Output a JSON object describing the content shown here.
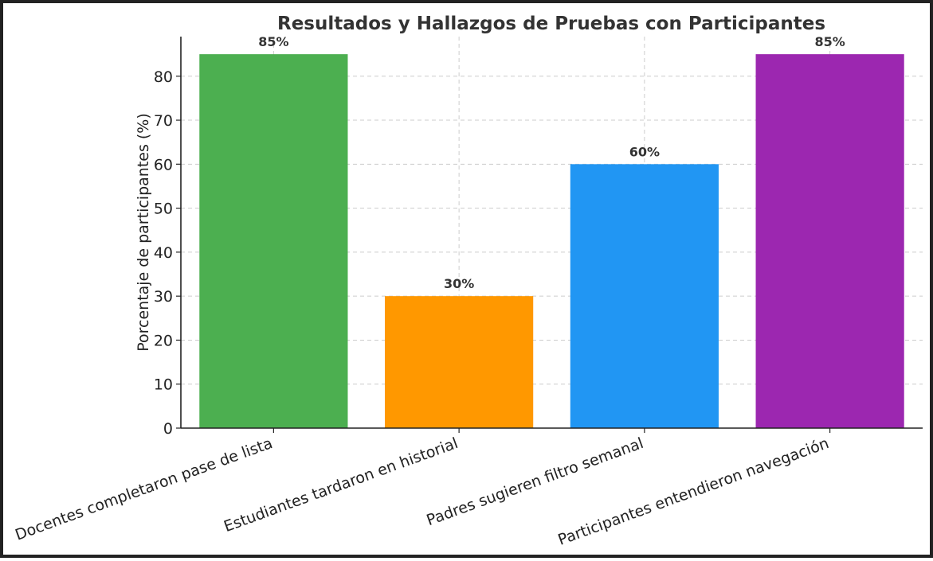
{
  "chart_data": {
    "type": "bar",
    "title": "Resultados y Hallazgos de Pruebas con Participantes",
    "xlabel": "",
    "ylabel": "Porcentaje de participantes (%)",
    "categories": [
      "Docentes completaron pase de lista",
      "Estudiantes tardaron en historial",
      "Padres sugieren filtro semanal",
      "Participantes entendieron navegación"
    ],
    "values": [
      85,
      30,
      60,
      85
    ],
    "data_labels": [
      "85%",
      "30%",
      "60%",
      "85%"
    ],
    "colors": [
      "#4caf50",
      "#ff9800",
      "#2196f3",
      "#9c27b0"
    ],
    "ylim": [
      0,
      89
    ],
    "yticks": [
      0,
      10,
      20,
      30,
      40,
      50,
      60,
      70,
      80
    ],
    "grid": true
  }
}
